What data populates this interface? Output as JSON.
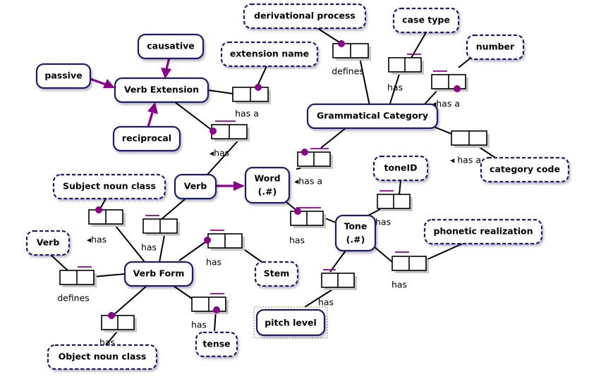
{
  "colors": {
    "accent": "#8b008b",
    "border": "#1a1f6b"
  },
  "nodes": {
    "derivational_process": "derivational process",
    "case_type": "case type",
    "causative": "causative",
    "extension_name": "extension name",
    "number": "number",
    "passive": "passive",
    "verb_extension": "Verb Extension",
    "grammatical_category": "Grammatical Category",
    "reciprocal": "reciprocal",
    "tone_id": "toneID",
    "category_code": "category code",
    "subject_noun_class": "Subject noun class",
    "verb": "Verb",
    "word_line1": "Word",
    "word_line2": "(.#)",
    "phonetic_realization": "phonetic realization",
    "tone_line1": "Tone",
    "tone_line2": "(.#)",
    "verb_attr": "Verb",
    "stem": "Stem",
    "verb_form": "Verb Form",
    "pitch_level": "pitch level",
    "tense": "tense",
    "object_noun_class": "Object noun class"
  },
  "relations": {
    "defines_1": "defines",
    "has_case": "has",
    "has_a_number": "◂has a",
    "has_a_extname": "has a",
    "has_verb_ext": "◂has",
    "has_a_word": "◂has a",
    "has_a_catcode": "◂ has a",
    "has_subject": "◂has",
    "has_verb_form": "has",
    "has_tone": "has",
    "has_toneid": "has",
    "has_stem": "has",
    "defines_2": "defines",
    "has_phonetic": "has",
    "has_pitch": "has",
    "has_tense": "has",
    "has_object": "has"
  }
}
